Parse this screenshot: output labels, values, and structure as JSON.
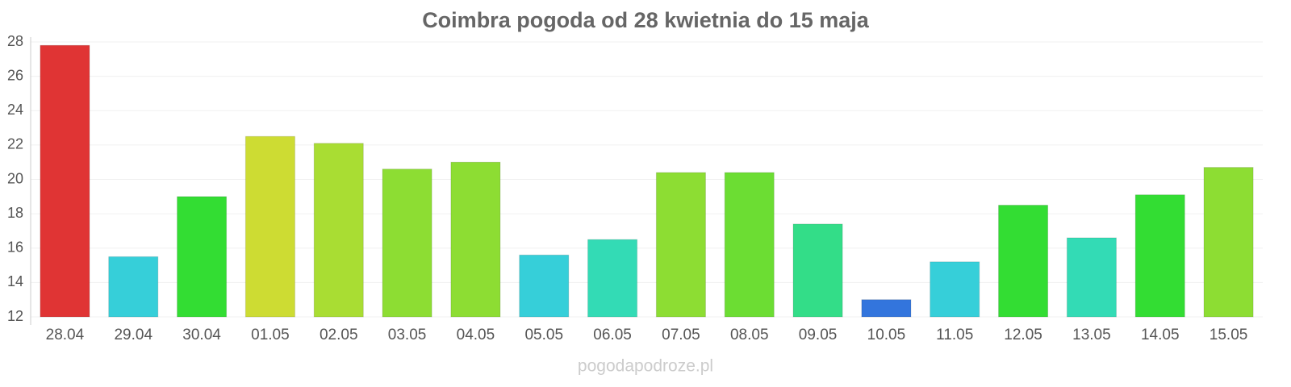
{
  "chart_data": {
    "type": "bar",
    "title": "Coimbra pogoda od 28 kwietnia do 15 maja",
    "categories": [
      "28.04",
      "29.04",
      "30.04",
      "01.05",
      "02.05",
      "03.05",
      "04.05",
      "05.05",
      "06.05",
      "07.05",
      "08.05",
      "09.05",
      "10.05",
      "11.05",
      "12.05",
      "13.05",
      "14.05",
      "15.05"
    ],
    "values": [
      27.8,
      15.5,
      19.0,
      22.5,
      22.1,
      20.6,
      21.0,
      15.6,
      16.5,
      20.4,
      20.4,
      17.4,
      13.0,
      15.2,
      18.5,
      16.6,
      19.1,
      20.7
    ],
    "colors": [
      "#e03434",
      "#36cfd9",
      "#33dd33",
      "#cddc33",
      "#a9dd33",
      "#8ddd33",
      "#8ddd33",
      "#36cfd9",
      "#33dbb5",
      "#8ddd33",
      "#6cdd33",
      "#33dd88",
      "#3375dd",
      "#36cfd9",
      "#33dd33",
      "#33dbb5",
      "#33dd33",
      "#8ddd33"
    ],
    "ylim": [
      12,
      28
    ],
    "yticks": [
      12,
      14,
      16,
      18,
      20,
      22,
      24,
      26,
      28
    ],
    "grid": true,
    "source": "pogodapodroze.pl"
  }
}
